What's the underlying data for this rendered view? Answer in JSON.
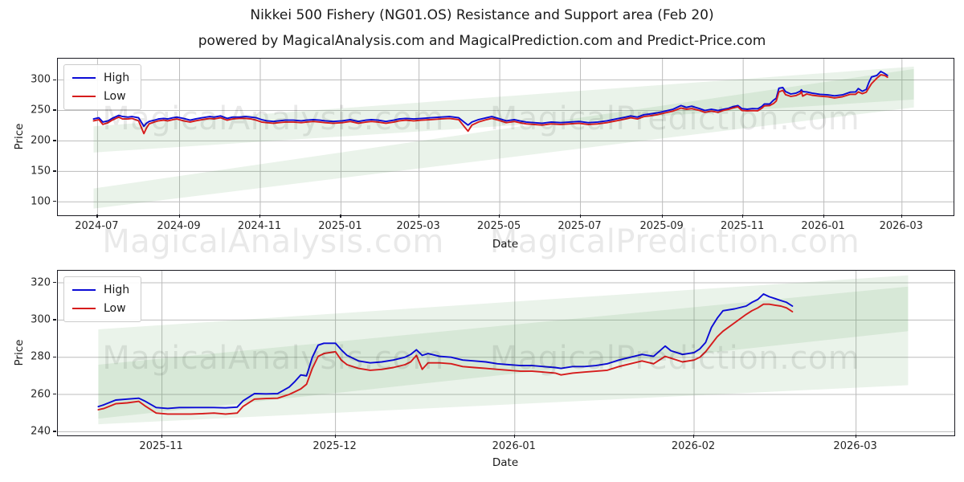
{
  "figure": {
    "title": "Nikkei 500 Fishery (NG01.OS) Resistance and Support area (Feb 20)",
    "subtitle": "powered by MagicalAnalysis.com and MagicalPrediction.com and Predict-Price.com"
  },
  "watermarks": {
    "left_text": "MagicalAnalysis.com",
    "right_text": "MagicalPrediction.com"
  },
  "colors": {
    "high_line": "#0b0bd6",
    "low_line": "#d61c1c",
    "band_fill": "rgba(96,160,90,0.13)",
    "grid": "#bcbcbc"
  },
  "chart_data": [
    {
      "type": "line",
      "name": "full-history",
      "xlabel": "Date",
      "ylabel": "Price",
      "grid": true,
      "legend_position": "upper-left",
      "legend": [
        {
          "label": "High",
          "color": "#0b0bd6"
        },
        {
          "label": "Low",
          "color": "#d61c1c"
        }
      ],
      "xlim": [
        "2024-06-01",
        "2026-04-09"
      ],
      "ylim": [
        78,
        335
      ],
      "y_ticks": [
        100,
        150,
        200,
        250,
        300
      ],
      "x_ticks": [
        {
          "date": "2024-07-01",
          "label": "2024-07"
        },
        {
          "date": "2024-09-01",
          "label": "2024-09"
        },
        {
          "date": "2024-11-01",
          "label": "2024-11"
        },
        {
          "date": "2025-01-01",
          "label": "2025-01"
        },
        {
          "date": "2025-03-01",
          "label": "2025-03"
        },
        {
          "date": "2025-05-01",
          "label": "2025-05"
        },
        {
          "date": "2025-07-01",
          "label": "2025-07"
        },
        {
          "date": "2025-09-01",
          "label": "2025-09"
        },
        {
          "date": "2025-11-01",
          "label": "2025-11"
        },
        {
          "date": "2026-01-01",
          "label": "2026-01"
        },
        {
          "date": "2026-03-01",
          "label": "2026-03"
        }
      ],
      "bands": [
        {
          "name": "resistance-area",
          "x0": "2024-06-28",
          "x1": "2026-03-10",
          "y_start": [
            181,
            224
          ],
          "y_end": [
            268,
            322
          ]
        },
        {
          "name": "support-area",
          "x0": "2024-06-28",
          "x1": "2026-03-10",
          "y_start": [
            89,
            122
          ],
          "y_end": [
            255,
            318
          ]
        }
      ],
      "points": [
        [
          "2024-06-28",
          236,
          233
        ],
        [
          "2024-07-02",
          238,
          235
        ],
        [
          "2024-07-05",
          231,
          227
        ],
        [
          "2024-07-09",
          233,
          230
        ],
        [
          "2024-07-12",
          237,
          234
        ],
        [
          "2024-07-17",
          242,
          239
        ],
        [
          "2024-07-20",
          240,
          236
        ],
        [
          "2024-07-24",
          239,
          236
        ],
        [
          "2024-07-27",
          240,
          237
        ],
        [
          "2024-08-01",
          238,
          233
        ],
        [
          "2024-08-05",
          224,
          212
        ],
        [
          "2024-08-07",
          229,
          221
        ],
        [
          "2024-08-09",
          232,
          228
        ],
        [
          "2024-08-13",
          234,
          231
        ],
        [
          "2024-08-16",
          236,
          233
        ],
        [
          "2024-08-20",
          237,
          234
        ],
        [
          "2024-08-23",
          236,
          233
        ],
        [
          "2024-08-27",
          238,
          235
        ],
        [
          "2024-08-30",
          239,
          236
        ],
        [
          "2024-09-04",
          237,
          233
        ],
        [
          "2024-09-09",
          234,
          231
        ],
        [
          "2024-09-13",
          236,
          233
        ],
        [
          "2024-09-18",
          238,
          235
        ],
        [
          "2024-09-24",
          240,
          237
        ],
        [
          "2024-09-27",
          239,
          236
        ],
        [
          "2024-10-02",
          241,
          238
        ],
        [
          "2024-10-07",
          237,
          234
        ],
        [
          "2024-10-11",
          239,
          236
        ],
        [
          "2024-10-16",
          239,
          237
        ],
        [
          "2024-10-21",
          240,
          237
        ],
        [
          "2024-10-25",
          239,
          236
        ],
        [
          "2024-10-29",
          238,
          234
        ],
        [
          "2024-11-02",
          235,
          231
        ],
        [
          "2024-11-06",
          233,
          230
        ],
        [
          "2024-11-11",
          232,
          229
        ],
        [
          "2024-11-15",
          233,
          230
        ],
        [
          "2024-11-20",
          234,
          231
        ],
        [
          "2024-11-26",
          234,
          231
        ],
        [
          "2024-12-02",
          233,
          230
        ],
        [
          "2024-12-06",
          234,
          231
        ],
        [
          "2024-12-11",
          235,
          232
        ],
        [
          "2024-12-16",
          234,
          231
        ],
        [
          "2024-12-20",
          233,
          230
        ],
        [
          "2024-12-26",
          232,
          229
        ],
        [
          "2025-01-02",
          233,
          230
        ],
        [
          "2025-01-08",
          235,
          232
        ],
        [
          "2025-01-14",
          232,
          229
        ],
        [
          "2025-01-20",
          234,
          231
        ],
        [
          "2025-01-24",
          235,
          232
        ],
        [
          "2025-01-29",
          234,
          231
        ],
        [
          "2025-02-04",
          232,
          229
        ],
        [
          "2025-02-10",
          234,
          231
        ],
        [
          "2025-02-14",
          236,
          233
        ],
        [
          "2025-02-19",
          237,
          234
        ],
        [
          "2025-02-25",
          236,
          233
        ],
        [
          "2025-03-03",
          237,
          234
        ],
        [
          "2025-03-10",
          238,
          235
        ],
        [
          "2025-03-17",
          239,
          236
        ],
        [
          "2025-03-24",
          240,
          237
        ],
        [
          "2025-03-31",
          238,
          235
        ],
        [
          "2025-04-04",
          231,
          224
        ],
        [
          "2025-04-07",
          226,
          216
        ],
        [
          "2025-04-10",
          231,
          226
        ],
        [
          "2025-04-15",
          235,
          231
        ],
        [
          "2025-04-21",
          238,
          235
        ],
        [
          "2025-04-25",
          240,
          237
        ],
        [
          "2025-04-30",
          237,
          234
        ],
        [
          "2025-05-06",
          233,
          230
        ],
        [
          "2025-05-12",
          235,
          232
        ],
        [
          "2025-05-16",
          233,
          230
        ],
        [
          "2025-05-21",
          231,
          228
        ],
        [
          "2025-05-27",
          230,
          227
        ],
        [
          "2025-06-02",
          229,
          226
        ],
        [
          "2025-06-09",
          231,
          228
        ],
        [
          "2025-06-16",
          230,
          227
        ],
        [
          "2025-06-23",
          231,
          228
        ],
        [
          "2025-06-30",
          232,
          229
        ],
        [
          "2025-07-07",
          230,
          227
        ],
        [
          "2025-07-14",
          231,
          228
        ],
        [
          "2025-07-21",
          233,
          230
        ],
        [
          "2025-07-28",
          236,
          233
        ],
        [
          "2025-08-04",
          239,
          236
        ],
        [
          "2025-08-08",
          241,
          238
        ],
        [
          "2025-08-13",
          239,
          236
        ],
        [
          "2025-08-18",
          243,
          240
        ],
        [
          "2025-08-22",
          244,
          241
        ],
        [
          "2025-08-28",
          246,
          243
        ],
        [
          "2025-09-03",
          249,
          246
        ],
        [
          "2025-09-09",
          252,
          249
        ],
        [
          "2025-09-15",
          258,
          254
        ],
        [
          "2025-09-19",
          255,
          252
        ],
        [
          "2025-09-23",
          257,
          253
        ],
        [
          "2025-09-29",
          253,
          250
        ],
        [
          "2025-10-03",
          250,
          247
        ],
        [
          "2025-10-08",
          252,
          249
        ],
        [
          "2025-10-13",
          250,
          247
        ],
        [
          "2025-10-17",
          252,
          250
        ],
        [
          "2025-10-21",
          253.5,
          251.8
        ],
        [
          "2025-10-24",
          256,
          254
        ],
        [
          "2025-10-28",
          258,
          256
        ],
        [
          "2025-10-31",
          253,
          250
        ],
        [
          "2025-11-04",
          252,
          249.5
        ],
        [
          "2025-11-08",
          253,
          249.7
        ],
        [
          "2025-11-12",
          252.8,
          249.5
        ],
        [
          "2025-11-15",
          256.5,
          253.5
        ],
        [
          "2025-11-17",
          260.5,
          257.5
        ],
        [
          "2025-11-21",
          260.5,
          258
        ],
        [
          "2025-11-24",
          267,
          261.5
        ],
        [
          "2025-11-26",
          270,
          265.5
        ],
        [
          "2025-11-28",
          286.5,
          280.5
        ],
        [
          "2025-12-01",
          287.5,
          283
        ],
        [
          "2025-12-03",
          281,
          276
        ],
        [
          "2025-12-07",
          277,
          273
        ],
        [
          "2025-12-11",
          278.5,
          274.5
        ],
        [
          "2025-12-14",
          281.5,
          277.5
        ],
        [
          "2025-12-15",
          284,
          281
        ],
        [
          "2025-12-16",
          281,
          273.5
        ],
        [
          "2025-12-19",
          280.5,
          277
        ],
        [
          "2025-12-23",
          278.5,
          275
        ],
        [
          "2025-12-29",
          276.5,
          273.5
        ],
        [
          "2026-01-04",
          275.5,
          272.5
        ],
        [
          "2026-01-09",
          274,
          270.5
        ],
        [
          "2026-01-15",
          275.5,
          272.5
        ],
        [
          "2026-01-21",
          280,
          276.5
        ],
        [
          "2026-01-25",
          280.5,
          276.5
        ],
        [
          "2026-01-27",
          286,
          280.5
        ],
        [
          "2026-01-30",
          281.5,
          277.5
        ],
        [
          "2026-02-02",
          284.5,
          280
        ],
        [
          "2026-02-04",
          296,
          287
        ],
        [
          "2026-02-06",
          305,
          294
        ],
        [
          "2026-02-10",
          307.5,
          303
        ],
        [
          "2026-02-13",
          314,
          308.5
        ],
        [
          "2026-02-16",
          310.5,
          307.5
        ],
        [
          "2026-02-18",
          307.5,
          304.5
        ]
      ]
    },
    {
      "type": "line",
      "name": "recent-zoom",
      "xlabel": "Date",
      "ylabel": "Price",
      "grid": true,
      "legend_position": "upper-left",
      "legend": [
        {
          "label": "High",
          "color": "#0b0bd6"
        },
        {
          "label": "Low",
          "color": "#d61c1c"
        }
      ],
      "xlim": [
        "2025-10-14",
        "2026-03-18"
      ],
      "ylim": [
        238,
        326.5
      ],
      "y_ticks": [
        240,
        260,
        280,
        300,
        320
      ],
      "x_ticks": [
        {
          "date": "2025-11-01",
          "label": "2025-11"
        },
        {
          "date": "2025-12-01",
          "label": "2025-12"
        },
        {
          "date": "2026-01-01",
          "label": "2026-01"
        },
        {
          "date": "2026-02-01",
          "label": "2026-02"
        },
        {
          "date": "2026-03-01",
          "label": "2026-03"
        }
      ],
      "bands": [
        {
          "name": "resistance-area",
          "x0": "2025-10-21",
          "x1": "2026-03-10",
          "y_start": [
            247,
            295
          ],
          "y_end": [
            294,
            324
          ]
        },
        {
          "name": "support-area",
          "x0": "2025-10-21",
          "x1": "2026-03-10",
          "y_start": [
            244,
            276
          ],
          "y_end": [
            265,
            318
          ]
        }
      ],
      "points": [
        [
          "2025-10-21",
          253.5,
          251.8
        ],
        [
          "2025-10-22",
          254.5,
          252.5
        ],
        [
          "2025-10-24",
          257,
          255
        ],
        [
          "2025-10-26",
          257.5,
          255.5
        ],
        [
          "2025-10-28",
          258,
          256.3
        ],
        [
          "2025-10-29",
          256.5,
          254
        ],
        [
          "2025-10-31",
          253,
          250
        ],
        [
          "2025-11-02",
          252.5,
          249.5
        ],
        [
          "2025-11-04",
          253,
          249.5
        ],
        [
          "2025-11-06",
          253,
          249.5
        ],
        [
          "2025-11-08",
          253,
          249.7
        ],
        [
          "2025-11-10",
          253,
          250
        ],
        [
          "2025-11-12",
          252.8,
          249.5
        ],
        [
          "2025-11-14",
          253.2,
          250
        ],
        [
          "2025-11-15",
          256.5,
          253.5
        ],
        [
          "2025-11-17",
          260.5,
          257.5
        ],
        [
          "2025-11-19",
          260.3,
          257.8
        ],
        [
          "2025-11-21",
          260.5,
          258
        ],
        [
          "2025-11-23",
          264,
          260
        ],
        [
          "2025-11-24",
          267,
          261.5
        ],
        [
          "2025-11-25",
          270.5,
          263
        ],
        [
          "2025-11-26",
          270,
          265.5
        ],
        [
          "2025-11-27",
          280,
          274
        ],
        [
          "2025-11-28",
          286.5,
          280.5
        ],
        [
          "2025-11-29",
          287.5,
          282
        ],
        [
          "2025-12-01",
          287.5,
          283
        ],
        [
          "2025-12-02",
          284,
          278.5
        ],
        [
          "2025-12-03",
          281,
          276
        ],
        [
          "2025-12-05",
          278,
          274
        ],
        [
          "2025-12-07",
          277,
          273
        ],
        [
          "2025-12-09",
          277.5,
          273.5
        ],
        [
          "2025-12-11",
          278.5,
          274.5
        ],
        [
          "2025-12-13",
          280,
          276
        ],
        [
          "2025-12-14",
          281.5,
          277.5
        ],
        [
          "2025-12-15",
          284,
          281
        ],
        [
          "2025-12-16",
          281,
          273.5
        ],
        [
          "2025-12-17",
          282,
          277
        ],
        [
          "2025-12-19",
          280.5,
          277
        ],
        [
          "2025-12-21",
          280,
          276.5
        ],
        [
          "2025-12-23",
          278.5,
          275
        ],
        [
          "2025-12-25",
          278,
          274.5
        ],
        [
          "2025-12-27",
          277.5,
          274
        ],
        [
          "2025-12-29",
          276.5,
          273.5
        ],
        [
          "2025-12-31",
          276,
          273
        ],
        [
          "2026-01-02",
          275.5,
          272.5
        ],
        [
          "2026-01-04",
          275.5,
          272.5
        ],
        [
          "2026-01-06",
          275,
          272
        ],
        [
          "2026-01-08",
          274.5,
          271.5
        ],
        [
          "2026-01-09",
          274,
          270.5
        ],
        [
          "2026-01-11",
          275,
          271.5
        ],
        [
          "2026-01-13",
          275,
          272
        ],
        [
          "2026-01-15",
          275.5,
          272.5
        ],
        [
          "2026-01-17",
          276.5,
          273
        ],
        [
          "2026-01-19",
          278.5,
          275
        ],
        [
          "2026-01-21",
          280,
          276.5
        ],
        [
          "2026-01-23",
          281.5,
          278
        ],
        [
          "2026-01-25",
          280.5,
          276.5
        ],
        [
          "2026-01-27",
          286,
          280.5
        ],
        [
          "2026-01-28",
          283.5,
          279.5
        ],
        [
          "2026-01-30",
          281.5,
          277.5
        ],
        [
          "2026-02-01",
          282.5,
          278.5
        ],
        [
          "2026-02-02",
          284.5,
          280
        ],
        [
          "2026-02-03",
          288,
          283
        ],
        [
          "2026-02-04",
          296,
          287
        ],
        [
          "2026-02-05",
          301,
          291
        ],
        [
          "2026-02-06",
          305,
          294
        ],
        [
          "2026-02-08",
          306,
          298.5
        ],
        [
          "2026-02-10",
          307.5,
          303
        ],
        [
          "2026-02-11",
          309.5,
          305
        ],
        [
          "2026-02-12",
          311,
          306.5
        ],
        [
          "2026-02-13",
          314,
          308.5
        ],
        [
          "2026-02-14",
          312.5,
          308.5
        ],
        [
          "2026-02-15",
          311.5,
          308
        ],
        [
          "2026-02-16",
          310.5,
          307.5
        ],
        [
          "2026-02-17",
          309.5,
          306.5
        ],
        [
          "2026-02-18",
          307.5,
          304.5
        ]
      ]
    }
  ]
}
